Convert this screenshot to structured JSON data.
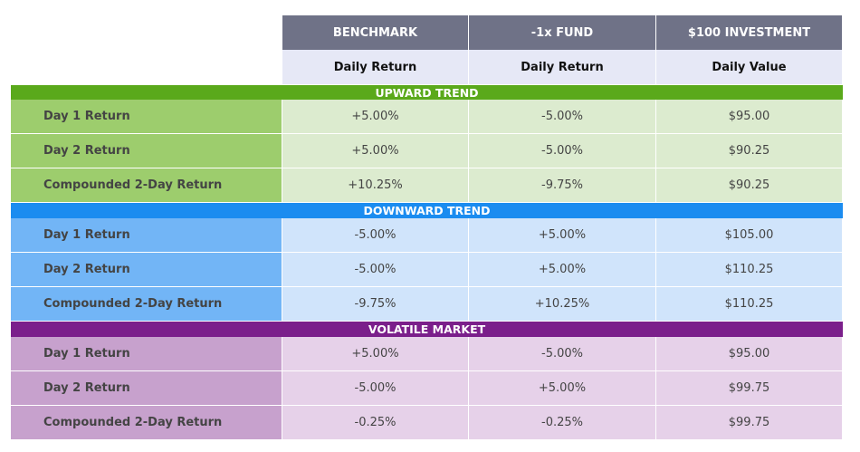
{
  "table": {
    "columns": [
      {
        "title": "BENCHMARK",
        "subtitle": "Daily Return"
      },
      {
        "title": "-1x FUND",
        "subtitle": "Daily Return"
      },
      {
        "title": "$100 INVESTMENT",
        "subtitle": "Daily Value"
      }
    ],
    "sections": [
      {
        "title": "UPWARD TREND",
        "rows": [
          [
            "Day 1 Return",
            "+5.00%",
            "-5.00%",
            "$95.00"
          ],
          [
            "Day 2 Return",
            "+5.00%",
            "-5.00%",
            "$90.25"
          ],
          [
            "Compounded 2-Day Return",
            "+10.25%",
            "-9.75%",
            "$90.25"
          ]
        ]
      },
      {
        "title": "DOWNWARD TREND",
        "rows": [
          [
            "Day 1 Return",
            "-5.00%",
            "+5.00%",
            "$105.00"
          ],
          [
            "Day 2 Return",
            "-5.00%",
            "+5.00%",
            "$110.25"
          ],
          [
            "Compounded 2-Day Return",
            "-9.75%",
            "+10.25%",
            "$110.25"
          ]
        ]
      },
      {
        "title": "VOLATILE MARKET",
        "rows": [
          [
            "Day 1 Return",
            "+5.00%",
            "-5.00%",
            "$95.00"
          ],
          [
            "Day 2 Return",
            "-5.00%",
            "+5.00%",
            "$99.75"
          ],
          [
            "Compounded 2-Day Return",
            "-0.25%",
            "-0.25%",
            "$99.75"
          ]
        ]
      }
    ]
  }
}
